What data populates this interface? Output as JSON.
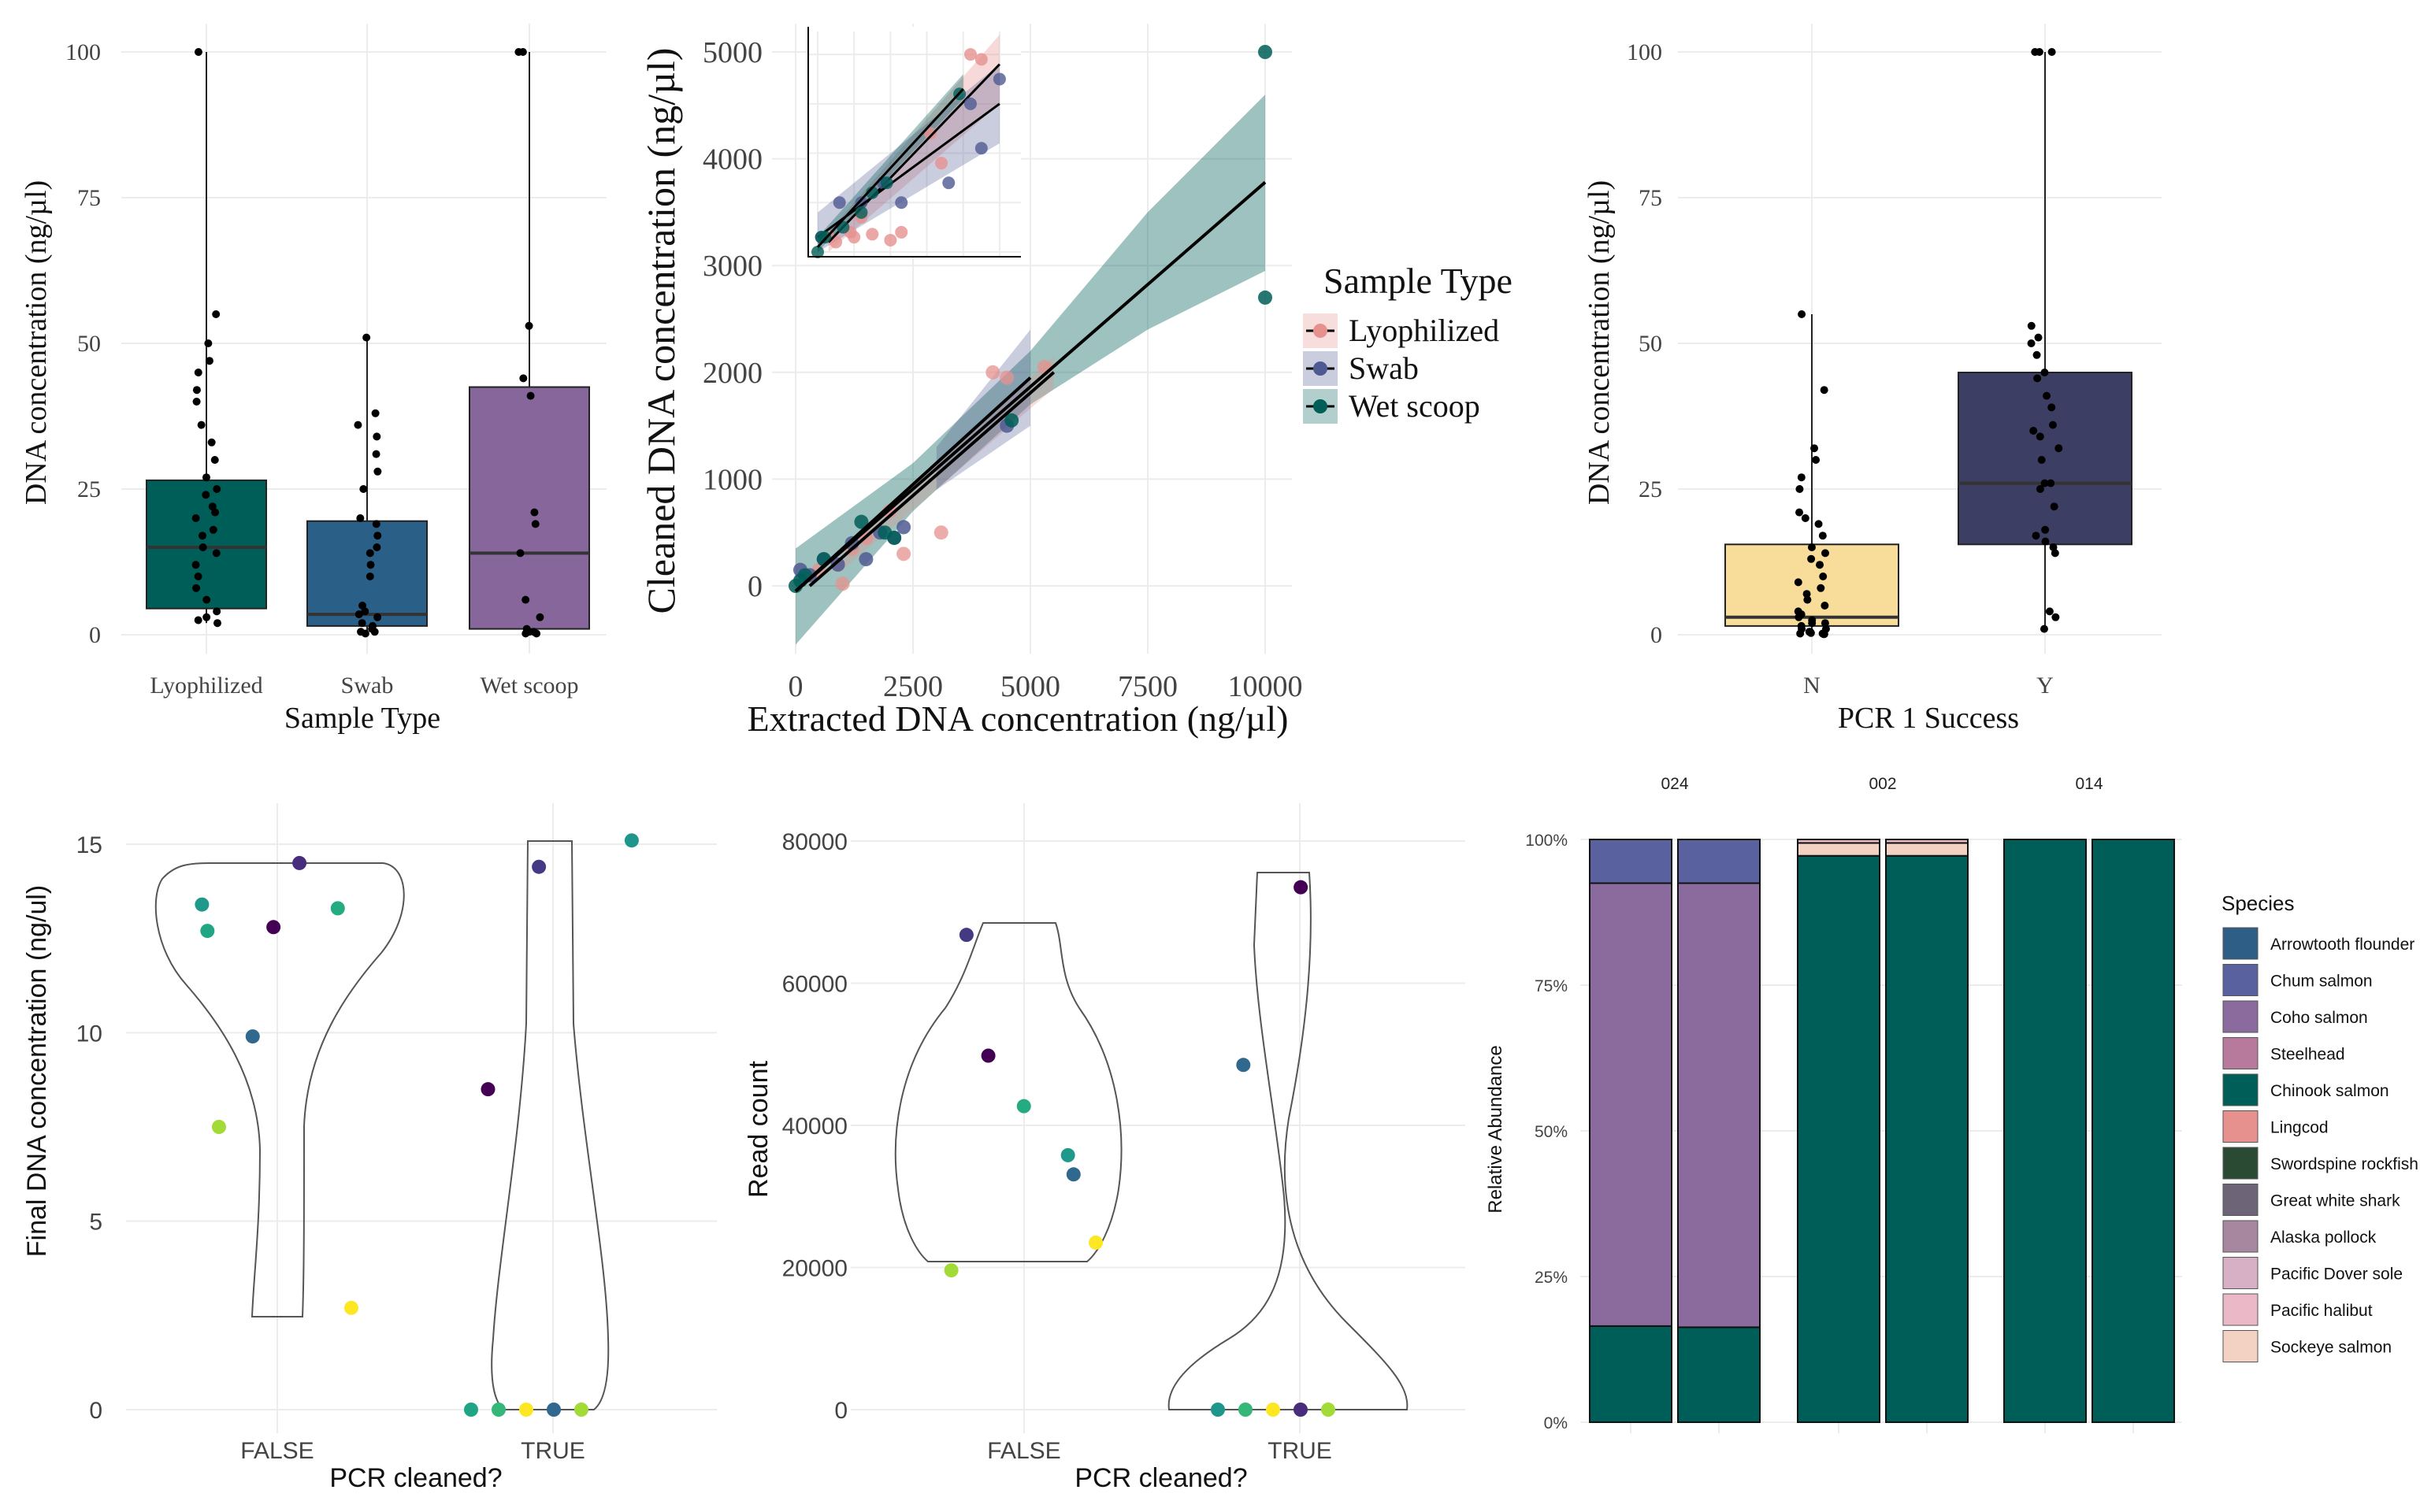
{
  "colors": {
    "lyophilized": "#e6918e",
    "swab": "#4f5a92",
    "wet_scoop": "#005e58",
    "box_lyophilized": "#005e58",
    "box_swab": "#2a5f87",
    "box_wet_scoop": "#87669b",
    "box_n": "#f7dc9a",
    "box_y": "#3c3e63",
    "grid": "#ececec"
  },
  "chart_data": [
    {
      "id": "p1",
      "type": "box",
      "xlabel": "Sample Type",
      "ylabel": "DNA concentration (ng/µl)",
      "ylim": [
        0,
        100
      ],
      "yticks": [
        "0",
        "25",
        "50",
        "75",
        "100"
      ],
      "categories": [
        "Lyophilized",
        "Swab",
        "Wet scoop"
      ],
      "boxes": [
        {
          "category": "Lyophilized",
          "q1": 4.5,
          "median": 15,
          "q3": 26.5,
          "fill": "#005e58"
        },
        {
          "category": "Swab",
          "q1": 1.5,
          "median": 3.5,
          "q3": 19.5,
          "fill": "#2a5f87"
        },
        {
          "category": "Wet scoop",
          "q1": 1,
          "median": 14,
          "q3": 42.5,
          "fill": "#87669b"
        }
      ],
      "points": [
        [
          100,
          55,
          50,
          47,
          45,
          42,
          40,
          36,
          33,
          30,
          27,
          25,
          24,
          22,
          21,
          20,
          18,
          17,
          15,
          14,
          12,
          10,
          8,
          6,
          4,
          3,
          2.5,
          2
        ],
        [
          51,
          38,
          36,
          34,
          31,
          28,
          25,
          20,
          19,
          17,
          15,
          14,
          12,
          10,
          5,
          4,
          3.5,
          3,
          2,
          1.5,
          1,
          0.5,
          0.5,
          0.2
        ],
        [
          100,
          100,
          53,
          44,
          41,
          21,
          19,
          14,
          6,
          3,
          1,
          0.5,
          0.5,
          0.2,
          0.2
        ]
      ]
    },
    {
      "id": "p2",
      "type": "scatter",
      "xlabel": "Extracted DNA concentration (ng/µl)",
      "ylabel": "Cleaned DNA concentration (ng/µl)",
      "xlim": [
        0,
        10000
      ],
      "ylim": [
        -500,
        5000
      ],
      "xticks": [
        "0",
        "2500",
        "5000",
        "7500",
        "10000"
      ],
      "yticks": [
        "0",
        "1000",
        "2000",
        "3000",
        "4000",
        "5000"
      ],
      "legend_title": "Sample Type",
      "series": [
        {
          "name": "Lyophilized",
          "color": "#e6918e",
          "x": [
            300,
            500,
            900,
            1000,
            1200,
            1500,
            2000,
            2300,
            3100,
            4200,
            4500,
            5300
          ],
          "y": [
            100,
            150,
            200,
            20,
            350,
            450,
            700,
            300,
            500,
            2000,
            1950,
            2050
          ],
          "fit": {
            "x0": 300,
            "y0": 0,
            "x1": 5500,
            "y1": 2000
          }
        },
        {
          "name": "Swab",
          "color": "#4f5a92",
          "x": [
            100,
            300,
            600,
            900,
            1200,
            1500,
            1800,
            2100,
            2300,
            4500
          ],
          "y": [
            150,
            100,
            250,
            200,
            400,
            250,
            500,
            450,
            550,
            1500
          ],
          "fit": {
            "x0": 0,
            "y0": -50,
            "x1": 5000,
            "y1": 1950
          }
        },
        {
          "name": "Wet scoop",
          "color": "#005e58",
          "x": [
            0,
            100,
            200,
            600,
            1400,
            1900,
            2100,
            4600,
            10000,
            10000
          ],
          "y": [
            0,
            50,
            100,
            250,
            600,
            500,
            450,
            1550,
            5000,
            2700
          ],
          "fit": {
            "x0": 0,
            "y0": -50,
            "x1": 10000,
            "y1": 3780
          }
        }
      ],
      "inset": {
        "xlim": [
          0,
          5500
        ],
        "ylim": [
          0,
          2200
        ],
        "series": [
          {
            "name": "Lyophilized",
            "x": [
              300,
              500,
              900,
              1000,
              1200,
              1500,
              2000,
              2300,
              3100,
              4200,
              4500,
              3400
            ],
            "y": [
              150,
              100,
              200,
              150,
              350,
              180,
              120,
              200,
              1200,
              2000,
              1950,
              900
            ],
            "fit": {
              "x0": 300,
              "y0": 100,
              "x1": 5000,
              "y1": 1900
            }
          },
          {
            "name": "Swab",
            "x": [
              100,
              600,
              1200,
              1800,
              2300,
              3600,
              4200,
              4500,
              5000
            ],
            "y": [
              150,
              500,
              500,
              700,
              500,
              700,
              1500,
              1050,
              1750
            ],
            "fit": {
              "x0": 0,
              "y0": 150,
              "x1": 5000,
              "y1": 1500
            }
          },
          {
            "name": "Wet scoop",
            "x": [
              0,
              100,
              200,
              700,
              1200,
              1500,
              1900,
              3900
            ],
            "y": [
              0,
              150,
              150,
              250,
              400,
              600,
              700,
              1600
            ],
            "fit": {
              "x0": 0,
              "y0": 50,
              "x1": 4000,
              "y1": 1650
            }
          }
        ]
      }
    },
    {
      "id": "p3",
      "type": "box",
      "xlabel": "PCR 1 Success",
      "ylabel": "DNA concentration (ng/µl)",
      "ylim": [
        0,
        100
      ],
      "yticks": [
        "0",
        "25",
        "50",
        "75",
        "100"
      ],
      "categories": [
        "N",
        "Y"
      ],
      "boxes": [
        {
          "category": "N",
          "q1": 1.5,
          "median": 3,
          "q3": 15.5,
          "fill": "#f7dc9a"
        },
        {
          "category": "Y",
          "q1": 15.5,
          "median": 26,
          "q3": 45,
          "fill": "#3c3e63"
        }
      ],
      "points": [
        [
          55,
          42,
          32,
          30,
          27,
          25,
          21,
          20,
          19,
          17,
          15,
          14,
          13,
          12,
          10,
          9,
          8,
          7,
          6,
          5,
          4,
          3.5,
          3,
          2.5,
          2,
          2,
          1.5,
          1,
          1,
          0.5,
          0.5,
          0.3,
          0.2,
          0.2,
          0.1,
          0.1
        ],
        [
          100,
          100,
          100,
          53,
          51,
          50,
          48,
          45,
          44,
          41,
          39,
          36,
          35,
          34,
          32,
          30,
          26,
          26,
          25,
          22,
          18,
          17,
          16,
          15,
          14,
          4,
          3,
          1
        ]
      ]
    },
    {
      "id": "p4",
      "type": "violin",
      "xlabel": "PCR cleaned?",
      "ylabel": "Final DNA concentration (ng/ul)",
      "ylim": [
        0,
        15
      ],
      "yticks": [
        "0",
        "5",
        "10",
        "15"
      ],
      "categories": [
        "FALSE",
        "TRUE"
      ],
      "points": [
        {
          "group": "FALSE",
          "y": 14.5,
          "color": "#472d7b"
        },
        {
          "group": "FALSE",
          "y": 12.7,
          "color": "#21a685"
        },
        {
          "group": "FALSE",
          "y": 13.3,
          "color": "#25ab82"
        },
        {
          "group": "FALSE",
          "y": 12.8,
          "color": "#440154"
        },
        {
          "group": "FALSE",
          "y": 13.4,
          "color": "#1f9a8a"
        },
        {
          "group": "FALSE",
          "y": 9.9,
          "color": "#31688e"
        },
        {
          "group": "FALSE",
          "y": 7.5,
          "color": "#a2da37"
        },
        {
          "group": "FALSE",
          "y": 2.7,
          "color": "#fde725"
        },
        {
          "group": "TRUE",
          "y": 15.1,
          "color": "#1f968b"
        },
        {
          "group": "TRUE",
          "y": 14.4,
          "color": "#443a83"
        },
        {
          "group": "TRUE",
          "y": 8.5,
          "color": "#440154"
        },
        {
          "group": "TRUE",
          "y": 0,
          "color": "#20a486"
        },
        {
          "group": "TRUE",
          "y": 0,
          "color": "#35b779"
        },
        {
          "group": "TRUE",
          "y": 0,
          "color": "#fde725"
        },
        {
          "group": "TRUE",
          "y": 0,
          "color": "#31688e"
        },
        {
          "group": "TRUE",
          "y": 0,
          "color": "#a2da37"
        }
      ]
    },
    {
      "id": "p5",
      "type": "violin",
      "xlabel": "PCR cleaned?",
      "ylabel": "Read count",
      "ylim": [
        0,
        80000
      ],
      "yticks": [
        "0",
        "20000",
        "40000",
        "60000",
        "80000"
      ],
      "categories": [
        "FALSE",
        "TRUE"
      ],
      "points": [
        {
          "group": "FALSE",
          "y": 66800,
          "color": "#443a83"
        },
        {
          "group": "FALSE",
          "y": 49800,
          "color": "#440154"
        },
        {
          "group": "FALSE",
          "y": 42700,
          "color": "#25ab82"
        },
        {
          "group": "FALSE",
          "y": 35800,
          "color": "#1f9a8a"
        },
        {
          "group": "FALSE",
          "y": 33100,
          "color": "#31688e"
        },
        {
          "group": "FALSE",
          "y": 23500,
          "color": "#fde725"
        },
        {
          "group": "FALSE",
          "y": 19600,
          "color": "#a2da37"
        },
        {
          "group": "TRUE",
          "y": 73500,
          "color": "#440154"
        },
        {
          "group": "TRUE",
          "y": 48500,
          "color": "#31688e"
        },
        {
          "group": "TRUE",
          "y": 0,
          "color": "#1f968b"
        },
        {
          "group": "TRUE",
          "y": 0,
          "color": "#35b779"
        },
        {
          "group": "TRUE",
          "y": 0,
          "color": "#fde725"
        },
        {
          "group": "TRUE",
          "y": 0,
          "color": "#472d7b"
        },
        {
          "group": "TRUE",
          "y": 0,
          "color": "#a2da37"
        }
      ]
    },
    {
      "id": "p6",
      "type": "stacked_bar",
      "ylabel": "Relative Abundance",
      "yticks": [
        "0%",
        "25%",
        "50%",
        "75%",
        "100%"
      ],
      "facets": [
        "024",
        "002",
        "014"
      ],
      "legend_title": "Species",
      "species": [
        {
          "name": "Arrowtooth flounder",
          "color": "#2e5e85"
        },
        {
          "name": "Chum salmon",
          "color": "#59629e"
        },
        {
          "name": "Coho salmon",
          "color": "#8b6a9e"
        },
        {
          "name": "Steelhead",
          "color": "#b87a9c"
        },
        {
          "name": "Chinook salmon",
          "color": "#005e58"
        },
        {
          "name": "Lingcod",
          "color": "#e6918e"
        },
        {
          "name": "Swordspine rockfish",
          "color": "#2b4a34"
        },
        {
          "name": "Great white shark",
          "color": "#6e6478"
        },
        {
          "name": "Alaska pollock",
          "color": "#a7869f"
        },
        {
          "name": "Pacific Dover sole",
          "color": "#d8b0c6"
        },
        {
          "name": "Pacific halibut",
          "color": "#eab8c7"
        },
        {
          "name": "Sockeye salmon",
          "color": "#f3d2c3"
        }
      ],
      "bars": [
        {
          "facet": "024",
          "segments": [
            {
              "species": "Chinook salmon",
              "value": 0.165
            },
            {
              "species": "Coho salmon",
              "value": 0.76
            },
            {
              "species": "Chum salmon",
              "value": 0.075
            }
          ]
        },
        {
          "facet": "024",
          "segments": [
            {
              "species": "Chinook salmon",
              "value": 0.163
            },
            {
              "species": "Coho salmon",
              "value": 0.762
            },
            {
              "species": "Chum salmon",
              "value": 0.075
            }
          ]
        },
        {
          "facet": "002",
          "segments": [
            {
              "species": "Chinook salmon",
              "value": 0.972
            },
            {
              "species": "Sockeye salmon",
              "value": 0.022
            },
            {
              "species": "Pacific halibut",
              "value": 0.006
            }
          ]
        },
        {
          "facet": "002",
          "segments": [
            {
              "species": "Chinook salmon",
              "value": 0.972
            },
            {
              "species": "Sockeye salmon",
              "value": 0.022
            },
            {
              "species": "Pacific halibut",
              "value": 0.006
            }
          ]
        },
        {
          "facet": "014",
          "segments": [
            {
              "species": "Chinook salmon",
              "value": 1.0
            }
          ]
        },
        {
          "facet": "014",
          "segments": [
            {
              "species": "Chinook salmon",
              "value": 1.0
            }
          ]
        }
      ]
    }
  ]
}
